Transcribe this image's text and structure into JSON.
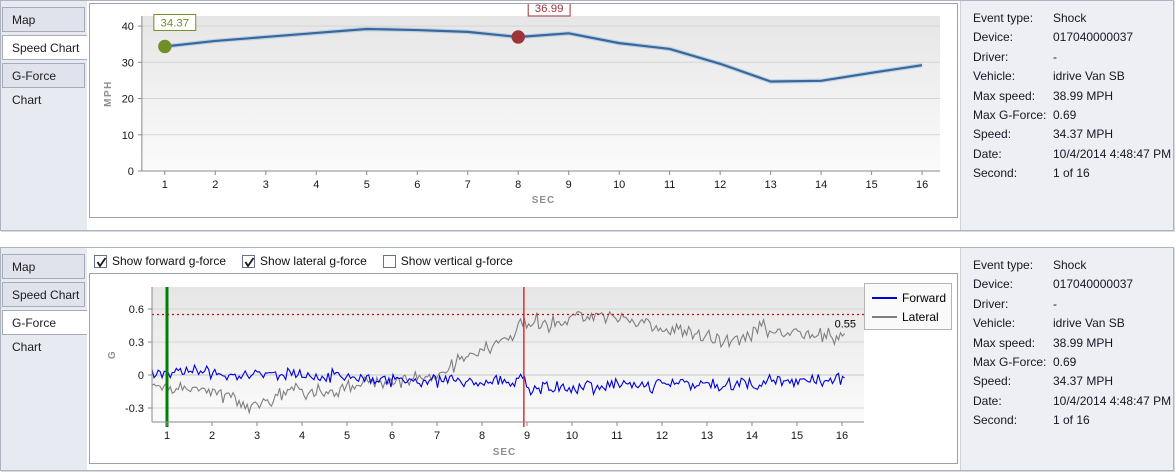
{
  "tabs": [
    "Map",
    "Speed Chart",
    "G-Force Chart"
  ],
  "panels": {
    "top": {
      "active_tab": "Speed Chart"
    },
    "bottom": {
      "active_tab": "G-Force Chart",
      "checkboxes": [
        {
          "label": "Show forward g-force",
          "checked": true
        },
        {
          "label": "Show lateral g-force",
          "checked": true
        },
        {
          "label": "Show vertical g-force",
          "checked": false
        }
      ]
    }
  },
  "info": {
    "rows": [
      {
        "label": "Event type:",
        "value": "Shock"
      },
      {
        "label": "Device:",
        "value": "017040000037"
      },
      {
        "label": "Driver:",
        "value": "-"
      },
      {
        "label": "Vehicle:",
        "value": "idrive Van SB"
      },
      {
        "label": "Max speed:",
        "value": "38.99 MPH"
      },
      {
        "label": "Max G-Force:",
        "value": "0.69"
      },
      {
        "label": "Speed:",
        "value": "34.37 MPH"
      },
      {
        "label": "Date:",
        "value": "10/4/2014 4:48:47 PM"
      },
      {
        "label": "Second:",
        "value": "1 of 16"
      }
    ]
  },
  "chart_data": [
    {
      "type": "line",
      "title": "Speed Chart",
      "xlabel": "SEC",
      "ylabel": "MPH",
      "x": [
        1,
        2,
        3,
        4,
        5,
        6,
        7,
        8,
        9,
        10,
        11,
        12,
        13,
        14,
        15,
        16
      ],
      "values": [
        34.37,
        35.9,
        37.0,
        38.1,
        39.2,
        38.9,
        38.4,
        36.99,
        38.0,
        35.3,
        33.7,
        29.6,
        24.7,
        24.9,
        27.1,
        29.2
      ],
      "ylim": [
        0,
        42.7
      ],
      "yticks": [
        0,
        10,
        20,
        30,
        40
      ],
      "grid": true,
      "line_color": "#35689f",
      "line_glow": "#a3bcd8",
      "markers": [
        {
          "x": 1,
          "value": 34.37,
          "label": "34.37",
          "color": "#6f9029",
          "label_offset": [
            -11,
            -17
          ]
        },
        {
          "x": 8,
          "value": 36.99,
          "label": "36.99",
          "color": "#9c3439",
          "label_offset": [
            10,
            -22
          ]
        }
      ]
    },
    {
      "type": "line",
      "title": "G-Force Chart",
      "xlabel": "SEC",
      "ylabel": "G",
      "xticks": [
        1,
        2,
        3,
        4,
        5,
        6,
        7,
        8,
        9,
        10,
        11,
        12,
        13,
        14,
        15,
        16
      ],
      "yticks": [
        -0.3,
        0,
        0.3,
        0.6
      ],
      "ylim": [
        -0.43,
        0.8
      ],
      "grid": true,
      "legend": [
        "Forward",
        "Lateral"
      ],
      "legend_position": "right",
      "threshold": {
        "value": 0.55,
        "label": "0.55",
        "color": "#dd0000"
      },
      "vlines": [
        {
          "x": 1,
          "color": "#008000",
          "width": 3
        },
        {
          "x": 8.93,
          "color": "#dd2222",
          "width": 1.4
        }
      ],
      "noise_seed": 97,
      "series": [
        {
          "name": "Forward",
          "color": "#0000dd",
          "noise": 0.04,
          "trend": [
            [
              0.55,
              0.02
            ],
            [
              1,
              0.0
            ],
            [
              1.5,
              0.03
            ],
            [
              2,
              0.01
            ],
            [
              2.5,
              0.0
            ],
            [
              3,
              0.01
            ],
            [
              3.5,
              -0.01
            ],
            [
              4,
              0.0
            ],
            [
              4.5,
              -0.01
            ],
            [
              5,
              -0.02
            ],
            [
              5.5,
              -0.04
            ],
            [
              6,
              -0.05
            ],
            [
              6.5,
              -0.04
            ],
            [
              7,
              -0.06
            ],
            [
              7.5,
              -0.05
            ],
            [
              8,
              -0.07
            ],
            [
              8.5,
              -0.05
            ],
            [
              8.93,
              -0.04
            ],
            [
              9.1,
              -0.15
            ],
            [
              9.5,
              -0.1
            ],
            [
              10,
              -0.12
            ],
            [
              10.5,
              -0.12
            ],
            [
              11,
              -0.1
            ],
            [
              11.5,
              -0.11
            ],
            [
              12,
              -0.08
            ],
            [
              12.5,
              -0.08
            ],
            [
              13,
              -0.06
            ],
            [
              13.4,
              -0.1
            ],
            [
              13.8,
              -0.04
            ],
            [
              14.1,
              -0.12
            ],
            [
              14.4,
              -0.03
            ],
            [
              14.8,
              -0.05
            ],
            [
              15.2,
              -0.03
            ],
            [
              15.6,
              -0.05
            ],
            [
              16,
              -0.02
            ]
          ]
        },
        {
          "name": "Lateral",
          "color": "#7f7f7f",
          "noise": 0.05,
          "trend": [
            [
              0.55,
              -0.08
            ],
            [
              1,
              -0.1
            ],
            [
              1.5,
              -0.13
            ],
            [
              2,
              -0.15
            ],
            [
              2.5,
              -0.2
            ],
            [
              2.8,
              -0.27
            ],
            [
              3.1,
              -0.27
            ],
            [
              3.5,
              -0.17
            ],
            [
              3.8,
              -0.12
            ],
            [
              4.2,
              -0.15
            ],
            [
              4.6,
              -0.14
            ],
            [
              5,
              -0.1
            ],
            [
              5.5,
              -0.06
            ],
            [
              6,
              -0.06
            ],
            [
              6.5,
              -0.04
            ],
            [
              7,
              0.0
            ],
            [
              7.5,
              0.12
            ],
            [
              8,
              0.25
            ],
            [
              8.4,
              0.28
            ],
            [
              8.7,
              0.38
            ],
            [
              8.95,
              0.5
            ],
            [
              9.3,
              0.48
            ],
            [
              9.7,
              0.47
            ],
            [
              10,
              0.52
            ],
            [
              10.4,
              0.55
            ],
            [
              10.8,
              0.53
            ],
            [
              11,
              0.5
            ],
            [
              11.4,
              0.52
            ],
            [
              11.7,
              0.46
            ],
            [
              12,
              0.41
            ],
            [
              12.4,
              0.43
            ],
            [
              12.8,
              0.36
            ],
            [
              13.2,
              0.32
            ],
            [
              13.6,
              0.31
            ],
            [
              14,
              0.36
            ],
            [
              14.2,
              0.45
            ],
            [
              14.5,
              0.4
            ],
            [
              14.8,
              0.37
            ],
            [
              15.2,
              0.38
            ],
            [
              15.6,
              0.36
            ],
            [
              16,
              0.31
            ]
          ]
        }
      ]
    }
  ],
  "colors": {
    "panel_bg": "#e8eaf1",
    "info_bg": "#edeff4",
    "plot_bg_top": "#e6e6e6",
    "plot_bg_bottom": "#fbfbfb",
    "axis": "#8a8a8a",
    "grid": "#d5d5d5"
  }
}
